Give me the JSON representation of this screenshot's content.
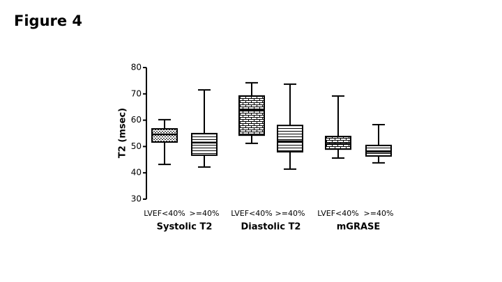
{
  "chart_data": {
    "type": "box",
    "title": "Figure 4",
    "y_label": "T2 (msec)",
    "categories": [
      "LVEF<40%",
      ">=40%",
      "LVEF<40%",
      ">=40%",
      "LVEF<40%",
      ">=40%"
    ],
    "group_labels": [
      "Systolic T2",
      "Diastolic T2",
      "mGRASE"
    ],
    "boxes": [
      {
        "min": 43.2,
        "q1": 51.7,
        "median": 54.6,
        "q3": 56.7,
        "max": 60.2
      },
      {
        "min": 42.2,
        "q1": 46.7,
        "median": 51.5,
        "q3": 54.9,
        "max": 71.5
      },
      {
        "min": 51.2,
        "q1": 54.3,
        "median": 63.9,
        "q3": 69.2,
        "max": 74.2
      },
      {
        "min": 41.4,
        "q1": 48,
        "median": 52,
        "q3": 58,
        "max": 73.7
      },
      {
        "min": 45.6,
        "q1": 49,
        "median": 51,
        "q3": 53.8,
        "max": 69.2
      },
      {
        "min": 43.8,
        "q1": 46.4,
        "median": 48,
        "q3": 50.4,
        "max": 58.3
      }
    ],
    "patterns": [
      "dots",
      "lines",
      "bricks",
      "lines",
      "bricks",
      "lines"
    ],
    "color": "#000000",
    "ylim": [
      30,
      80
    ],
    "yticks": [
      30,
      40,
      50,
      60,
      70,
      80
    ]
  }
}
